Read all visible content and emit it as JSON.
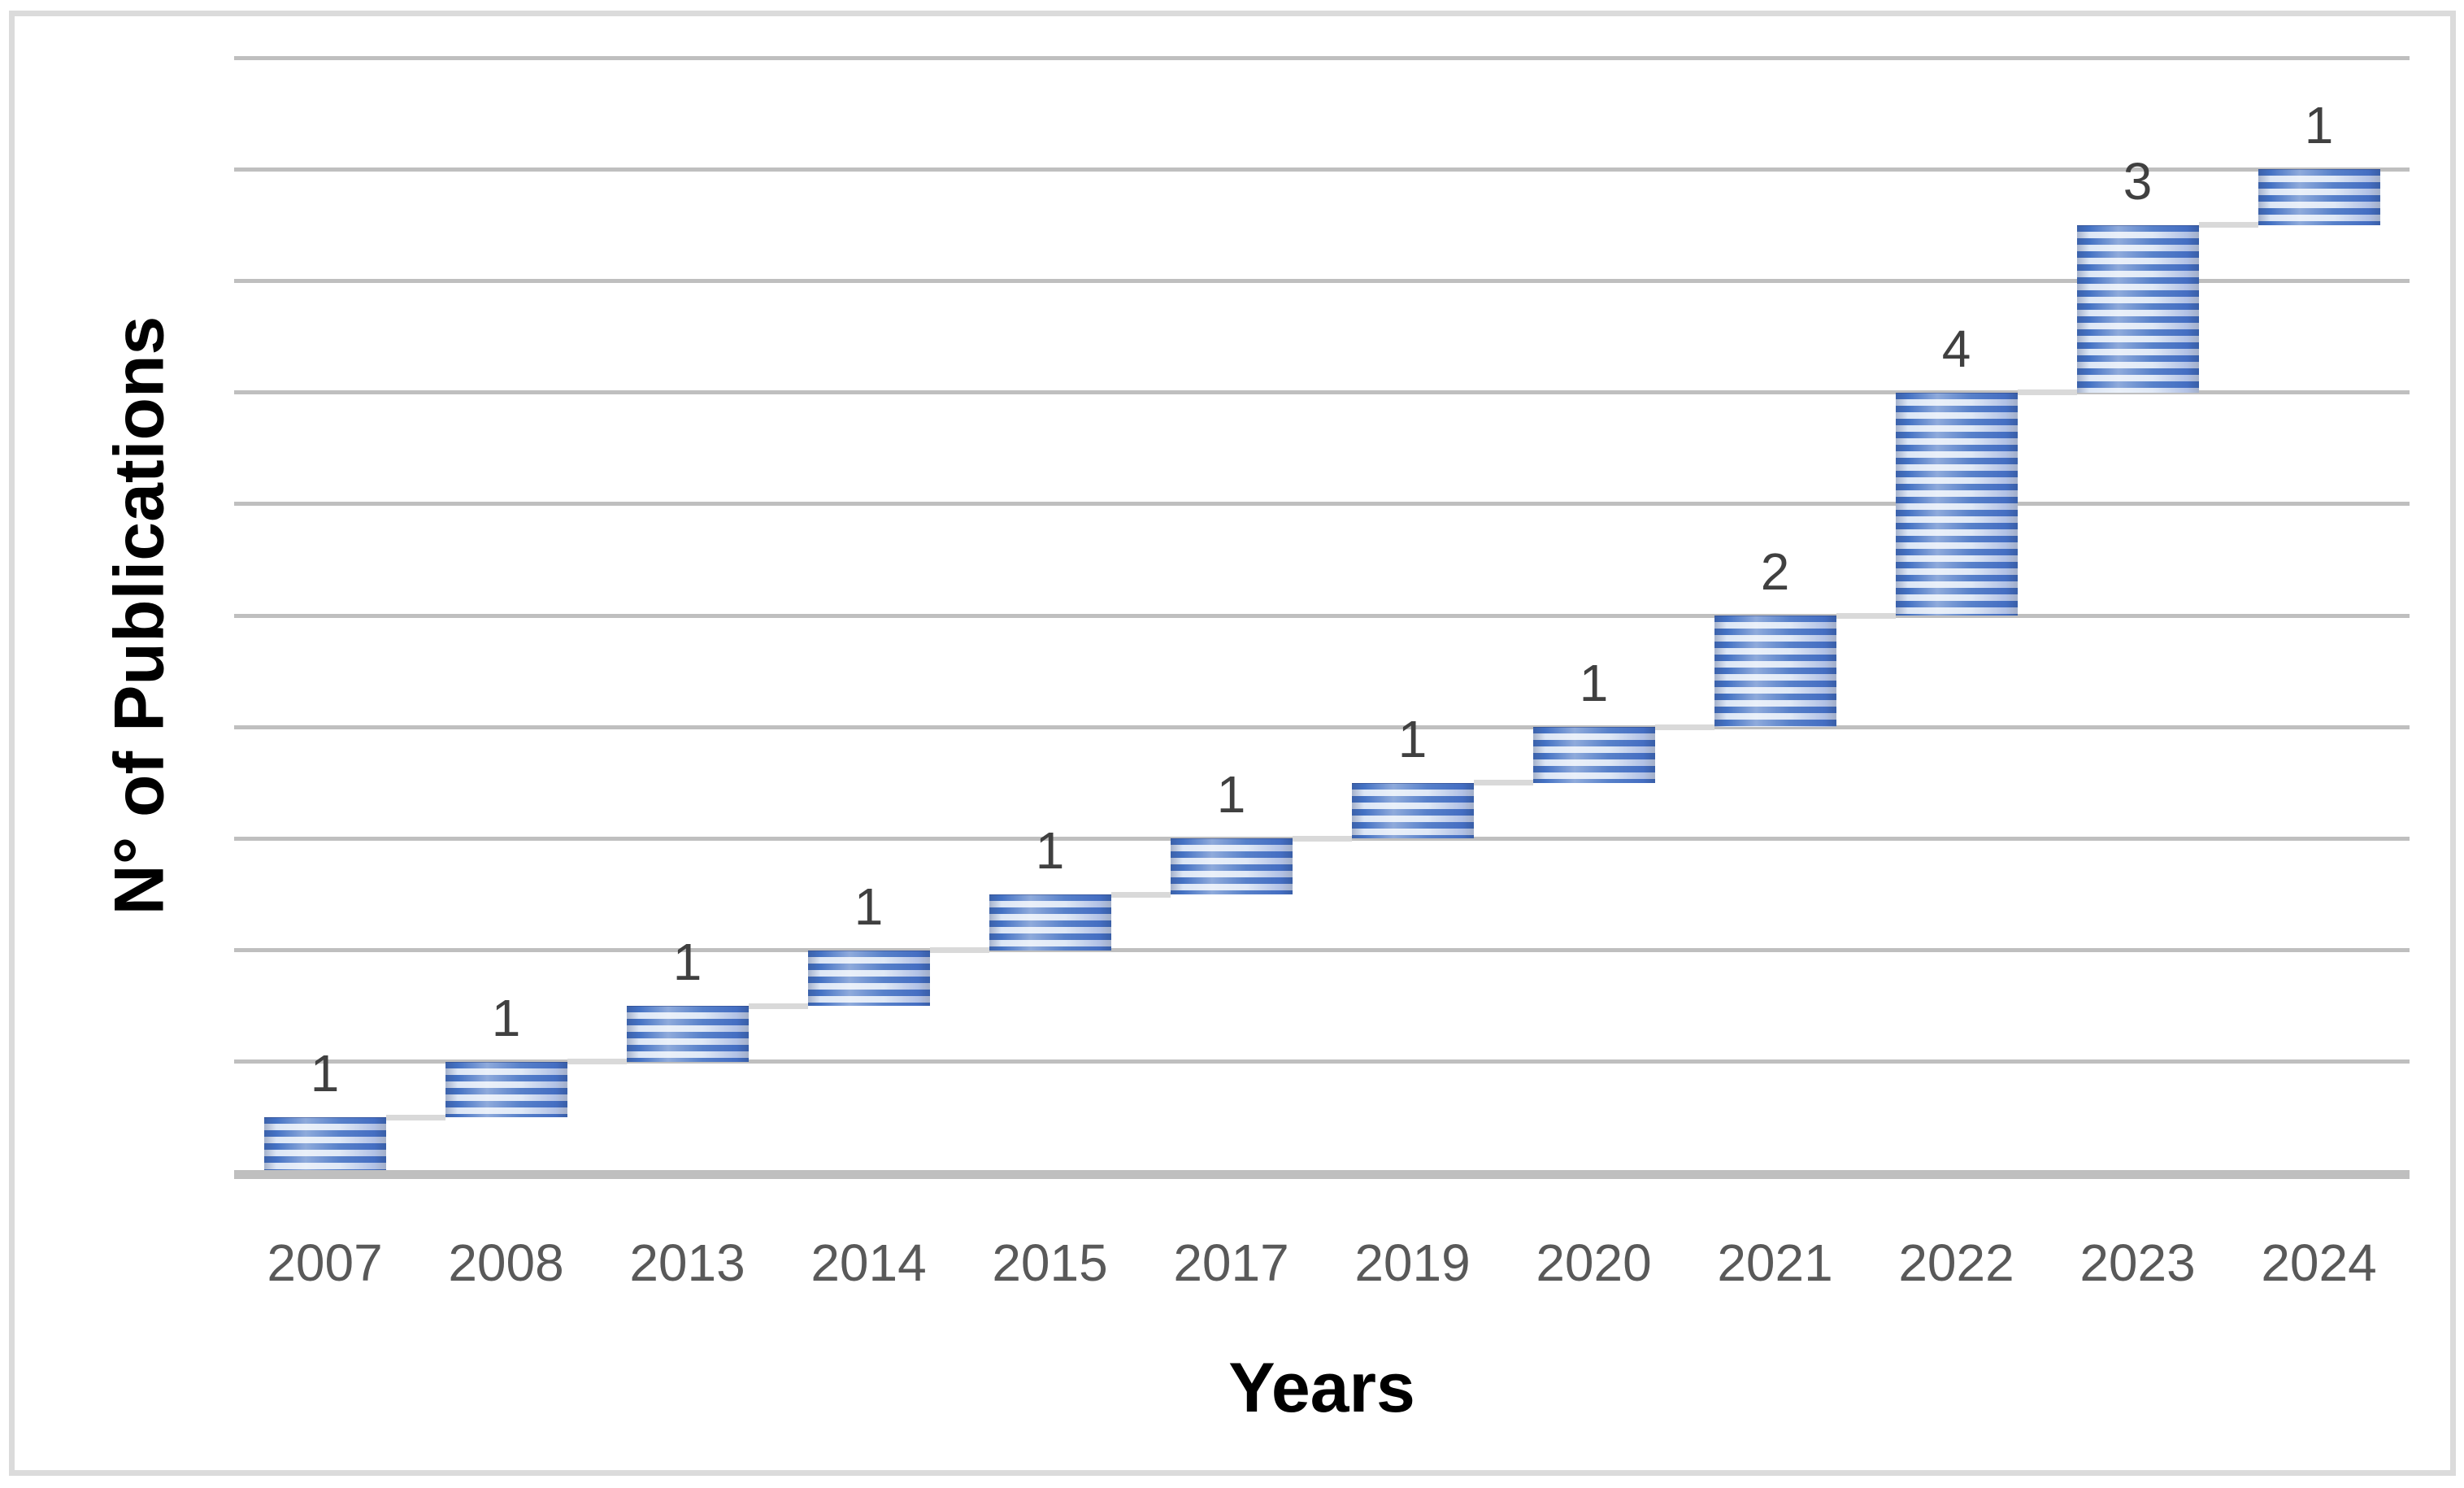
{
  "figure": {
    "background": "#FFFFFF",
    "border_color": "#DBDBDB"
  },
  "chart_data": {
    "type": "bar",
    "variant": "waterfall",
    "title": "",
    "xlabel": "Years",
    "ylabel": "N° of Publications",
    "categories": [
      "2007",
      "2008",
      "2013",
      "2014",
      "2015",
      "2017",
      "2019",
      "2020",
      "2021",
      "2022",
      "2023",
      "2024"
    ],
    "values": [
      1,
      1,
      1,
      1,
      1,
      1,
      1,
      1,
      2,
      4,
      3,
      1
    ],
    "cumulative_start": [
      0,
      1,
      2,
      3,
      4,
      5,
      6,
      7,
      8,
      10,
      14,
      17
    ],
    "cumulative_end": [
      1,
      2,
      3,
      4,
      5,
      6,
      7,
      8,
      10,
      14,
      17,
      18
    ],
    "data_labels": [
      "1",
      "1",
      "1",
      "1",
      "1",
      "1",
      "1",
      "1",
      "2",
      "4",
      "3",
      "1"
    ],
    "ylim": [
      0,
      20
    ],
    "gridline_interval": 2,
    "y_tick_labels_visible": false,
    "grid": "horizontal",
    "legend": "none",
    "colors": {
      "bar_stripe_dark": "#4472C4",
      "bar_stripe_light": "#DCE6F5",
      "gridline": "#BFBFBF",
      "baseline_axis": "#BFBFBF",
      "connector": "#D9D9D9",
      "value_label": "#404040",
      "tick_label": "#595959",
      "axis_title": "#000000"
    }
  }
}
